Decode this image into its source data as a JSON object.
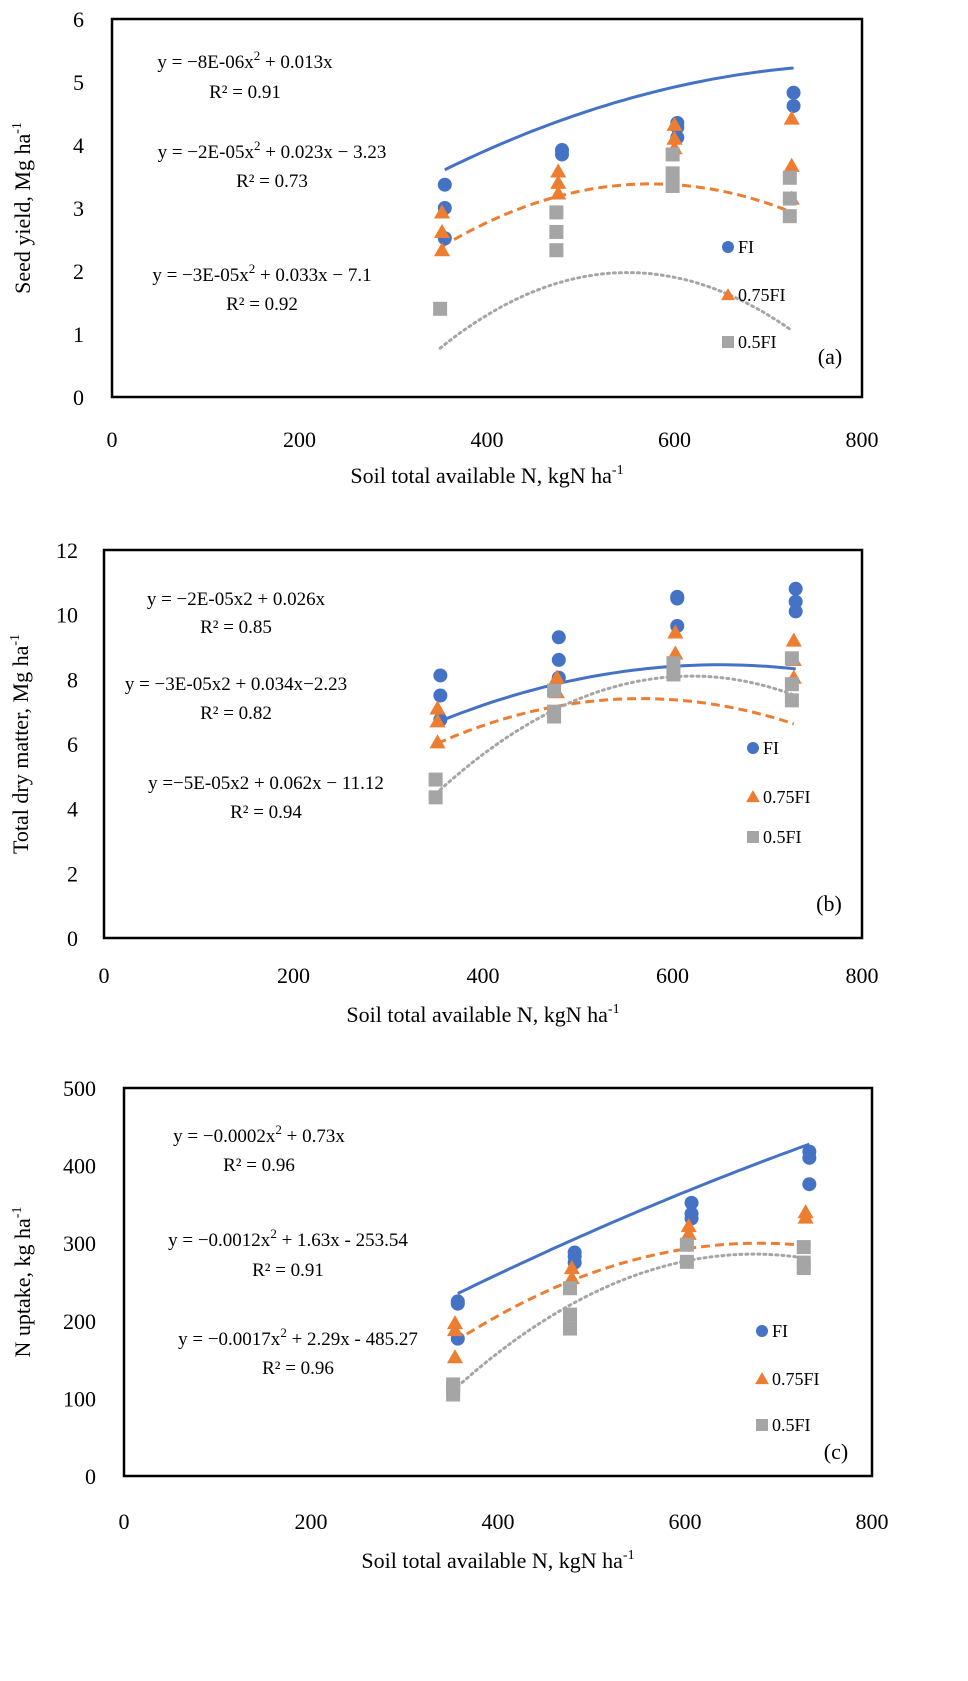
{
  "colors": {
    "FI": "#4472C4",
    "0.75FI": "#ED7D31",
    "0.5FI": "#A5A5A5"
  },
  "chart_data": [
    {
      "type": "scatter",
      "panel": "(a)",
      "xlabel": "Soil total available N, kgN ha",
      "xlabel_sup": "-1",
      "ylabel": "Seed yield, Mg ha",
      "ylabel_sup": "-1",
      "xlim": [
        0,
        800
      ],
      "ylim": [
        0,
        6
      ],
      "xticks": [
        0,
        200,
        400,
        600,
        800
      ],
      "yticks": [
        0,
        1,
        2,
        3,
        4,
        5,
        6
      ],
      "legend_position": "right",
      "series": [
        {
          "name": "FI",
          "marker": "circle",
          "line": "solid",
          "points": [
            [
              355,
              3.37
            ],
            [
              355,
              3.0
            ],
            [
              355,
              2.52
            ],
            [
              480,
              3.92
            ],
            [
              480,
              3.85
            ],
            [
              603,
              4.35
            ],
            [
              603,
              4.28
            ],
            [
              603,
              4.12
            ],
            [
              727,
              4.83
            ],
            [
              727,
              4.62
            ]
          ],
          "fit": [
            -8e-06,
            0.013,
            0
          ],
          "fit_range": [
            355,
            727
          ]
        },
        {
          "name": "0.75FI",
          "marker": "triangle",
          "line": "dashed",
          "points": [
            [
              352,
              2.93
            ],
            [
              352,
              2.62
            ],
            [
              352,
              2.33
            ],
            [
              476,
              3.58
            ],
            [
              476,
              3.4
            ],
            [
              476,
              3.23
            ],
            [
              600,
              4.32
            ],
            [
              600,
              4.1
            ],
            [
              600,
              3.95
            ],
            [
              725,
              4.42
            ],
            [
              725,
              3.67
            ],
            [
              725,
              3.15
            ]
          ],
          "fit": [
            -2e-05,
            0.023,
            -3.23
          ],
          "fit_range": [
            352,
            725
          ]
        },
        {
          "name": "0.5FI",
          "marker": "square",
          "line": "dotted",
          "points": [
            [
              350,
              1.4
            ],
            [
              474,
              2.93
            ],
            [
              474,
              2.62
            ],
            [
              474,
              2.33
            ],
            [
              598,
              3.85
            ],
            [
              598,
              3.55
            ],
            [
              598,
              3.35
            ],
            [
              723,
              3.48
            ],
            [
              723,
              3.15
            ],
            [
              723,
              2.87
            ]
          ],
          "fit": [
            -3e-05,
            0.033,
            -7.1
          ],
          "fit_range": [
            350,
            723
          ]
        }
      ],
      "equations": [
        {
          "eq": "y = −8E-06x",
          "eq_sup": "2",
          "eq_tail": " + 0.013x",
          "r2": "R² = 0.91"
        },
        {
          "eq": "y = −2E-05x",
          "eq_sup": "2",
          "eq_tail": " + 0.023x − 3.23",
          "r2": "R² = 0.73"
        },
        {
          "eq": "y = −3E-05x",
          "eq_sup": "2",
          "eq_tail": " + 0.033x − 7.1",
          "r2": "R² = 0.92"
        }
      ]
    },
    {
      "type": "scatter",
      "panel": "(b)",
      "xlabel": "Soil total available N, kgN ha",
      "xlabel_sup": "-1",
      "ylabel": "Total dry matter, Mg ha",
      "ylabel_sup": "-1",
      "xlim": [
        0,
        800
      ],
      "ylim": [
        0,
        12
      ],
      "xticks": [
        0,
        200,
        400,
        600,
        800
      ],
      "yticks": [
        0,
        2,
        4,
        6,
        8,
        10,
        12
      ],
      "legend_position": "right",
      "series": [
        {
          "name": "FI",
          "marker": "circle",
          "line": "solid",
          "points": [
            [
              355,
              8.12
            ],
            [
              355,
              7.5
            ],
            [
              355,
              6.75
            ],
            [
              480,
              9.3
            ],
            [
              480,
              8.6
            ],
            [
              480,
              8.05
            ],
            [
              605,
              10.55
            ],
            [
              605,
              10.5
            ],
            [
              605,
              9.65
            ],
            [
              730,
              10.8
            ],
            [
              730,
              10.4
            ],
            [
              730,
              10.1
            ]
          ],
          "fit": [
            -2e-05,
            0.026,
            0
          ],
          "fit_range": [
            355,
            730
          ]
        },
        {
          "name": "0.75FI",
          "marker": "triangle",
          "line": "dashed",
          "points": [
            [
              352,
              7.1
            ],
            [
              352,
              6.7
            ],
            [
              352,
              6.05
            ],
            [
              478,
              8.05
            ],
            [
              478,
              7.6
            ],
            [
              603,
              9.45
            ],
            [
              603,
              8.8
            ],
            [
              728,
              9.2
            ],
            [
              728,
              8.6
            ],
            [
              728,
              8.05
            ]
          ],
          "fit": [
            -3e-05,
            0.034,
            -2.23
          ],
          "fit_range": [
            352,
            728
          ]
        },
        {
          "name": "0.5FI",
          "marker": "square",
          "line": "dotted",
          "points": [
            [
              350,
              4.9
            ],
            [
              350,
              4.35
            ],
            [
              475,
              7.65
            ],
            [
              475,
              7.0
            ],
            [
              475,
              6.85
            ],
            [
              601,
              8.5
            ],
            [
              601,
              8.15
            ],
            [
              726,
              8.65
            ],
            [
              726,
              7.85
            ],
            [
              726,
              7.35
            ]
          ],
          "fit": [
            -5e-05,
            0.062,
            -11.12
          ],
          "fit_range": [
            350,
            726
          ]
        }
      ],
      "equations": [
        {
          "eq": "y = −2E-05x2 + 0.026x",
          "eq_sup": "",
          "eq_tail": "",
          "r2": "R² = 0.85"
        },
        {
          "eq": "y = −3E-05x2 + 0.034x−2.23",
          "eq_sup": "",
          "eq_tail": "",
          "r2": "R² = 0.82"
        },
        {
          "eq": "y =−5E-05x2 + 0.062x − 11.12",
          "eq_sup": "",
          "eq_tail": "",
          "r2": "R² = 0.94"
        }
      ]
    },
    {
      "type": "scatter",
      "panel": "(c)",
      "xlabel": "Soil total available N, kgN ha",
      "xlabel_sup": "-1",
      "ylabel": "N uptake, kg ha",
      "ylabel_sup": "-1",
      "xlim": [
        0,
        800
      ],
      "ylim": [
        0,
        500
      ],
      "xticks": [
        0,
        200,
        400,
        600,
        800
      ],
      "yticks": [
        0,
        100,
        200,
        300,
        400,
        500
      ],
      "legend_position": "right",
      "series": [
        {
          "name": "FI",
          "marker": "circle",
          "line": "solid",
          "points": [
            [
              357,
              225
            ],
            [
              357,
              222
            ],
            [
              357,
              177
            ],
            [
              482,
              288
            ],
            [
              482,
              283
            ],
            [
              482,
              275
            ],
            [
              607,
              352
            ],
            [
              607,
              338
            ],
            [
              607,
              332
            ],
            [
              733,
              418
            ],
            [
              733,
              410
            ],
            [
              733,
              376
            ]
          ],
          "fit": [
            -0.0002,
            0.73,
            0
          ],
          "fit_range": [
            357,
            733
          ]
        },
        {
          "name": "0.75FI",
          "marker": "triangle",
          "line": "dashed",
          "points": [
            [
              354,
              197
            ],
            [
              354,
              188
            ],
            [
              354,
              153
            ],
            [
              479,
              268
            ],
            [
              479,
              255
            ],
            [
              604,
              322
            ],
            [
              604,
              312
            ],
            [
              729,
              340
            ],
            [
              729,
              333
            ]
          ],
          "fit": [
            -0.0012,
            1.63,
            -253.54
          ],
          "fit_range": [
            354,
            729
          ]
        },
        {
          "name": "0.5FI",
          "marker": "square",
          "line": "dotted",
          "points": [
            [
              352,
              118
            ],
            [
              352,
              112
            ],
            [
              352,
              105
            ],
            [
              477,
              242
            ],
            [
              477,
              208
            ],
            [
              477,
              190
            ],
            [
              602,
              298
            ],
            [
              602,
              276
            ],
            [
              727,
              295
            ],
            [
              727,
              275
            ],
            [
              727,
              268
            ]
          ],
          "fit": [
            -0.0017,
            2.29,
            -485.27
          ],
          "fit_range": [
            352,
            727
          ]
        }
      ],
      "equations": [
        {
          "eq": "y = −0.0002x",
          "eq_sup": "2",
          "eq_tail": " + 0.73x",
          "r2": "R² = 0.96"
        },
        {
          "eq": "y = −0.0012x",
          "eq_sup": "2",
          "eq_tail": " + 1.63x - 253.54",
          "r2": "R² = 0.91"
        },
        {
          "eq": "y = −0.0017x",
          "eq_sup": "2",
          "eq_tail": " + 2.29x - 485.27",
          "r2": "R² = 0.96"
        }
      ]
    }
  ]
}
